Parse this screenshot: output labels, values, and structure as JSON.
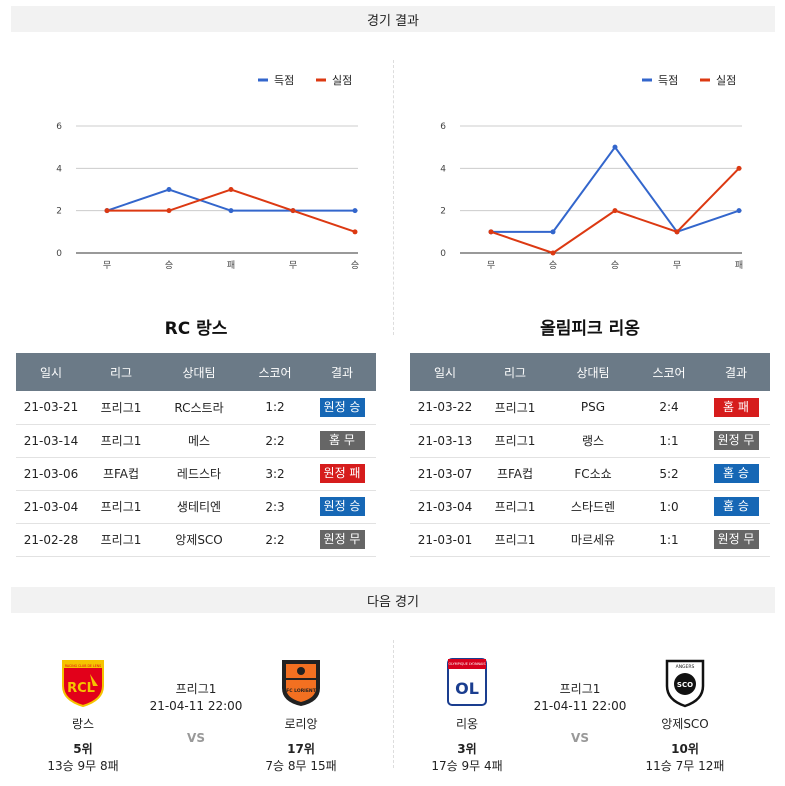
{
  "sections": {
    "results_title": "경기 결과",
    "next_title": "다음 경기"
  },
  "legend": {
    "scored": "득점",
    "conceded": "실점"
  },
  "colors": {
    "scored": "#3366cc",
    "conceded": "#dc3912",
    "win": "#1667b5",
    "draw": "#666666",
    "loss": "#d61c1c"
  },
  "chart_data": [
    {
      "type": "line",
      "categories": [
        "무",
        "승",
        "패",
        "무",
        "승"
      ],
      "series": [
        {
          "name": "득점",
          "values": [
            2,
            3,
            2,
            2,
            2
          ]
        },
        {
          "name": "실점",
          "values": [
            2,
            2,
            3,
            2,
            1
          ]
        }
      ],
      "yticks": [
        0,
        2,
        4,
        6
      ],
      "ylim": [
        0,
        6
      ],
      "legend_position": "top-right",
      "grid": true
    },
    {
      "type": "line",
      "categories": [
        "무",
        "승",
        "승",
        "무",
        "패"
      ],
      "series": [
        {
          "name": "득점",
          "values": [
            1,
            1,
            5,
            1,
            2
          ]
        },
        {
          "name": "실점",
          "values": [
            1,
            0,
            2,
            1,
            4
          ]
        }
      ],
      "yticks": [
        0,
        2,
        4,
        6
      ],
      "ylim": [
        0,
        6
      ],
      "legend_position": "top-right",
      "grid": true
    }
  ],
  "table_headers": [
    "일시",
    "리그",
    "상대팀",
    "스코어",
    "결과"
  ],
  "teams": [
    {
      "name": "RC 랑스",
      "rows": [
        {
          "date": "21-03-21",
          "league": "프리그1",
          "opponent": "RC스트라",
          "score": "1:2",
          "result": "원정 승",
          "kind": "win"
        },
        {
          "date": "21-03-14",
          "league": "프리그1",
          "opponent": "메스",
          "score": "2:2",
          "result": "홈 무",
          "kind": "draw"
        },
        {
          "date": "21-03-06",
          "league": "프FA컵",
          "opponent": "레드스타",
          "score": "3:2",
          "result": "원정 패",
          "kind": "loss"
        },
        {
          "date": "21-03-04",
          "league": "프리그1",
          "opponent": "생테티엔",
          "score": "2:3",
          "result": "원정 승",
          "kind": "win"
        },
        {
          "date": "21-02-28",
          "league": "프리그1",
          "opponent": "앙제SCO",
          "score": "2:2",
          "result": "원정 무",
          "kind": "draw"
        }
      ]
    },
    {
      "name": "올림피크 리옹",
      "rows": [
        {
          "date": "21-03-22",
          "league": "프리그1",
          "opponent": "PSG",
          "score": "2:4",
          "result": "홈 패",
          "kind": "loss"
        },
        {
          "date": "21-03-13",
          "league": "프리그1",
          "opponent": "랭스",
          "score": "1:1",
          "result": "원정 무",
          "kind": "draw"
        },
        {
          "date": "21-03-07",
          "league": "프FA컵",
          "opponent": "FC소쇼",
          "score": "5:2",
          "result": "홈 승",
          "kind": "win"
        },
        {
          "date": "21-03-04",
          "league": "프리그1",
          "opponent": "스타드렌",
          "score": "1:0",
          "result": "홈 승",
          "kind": "win"
        },
        {
          "date": "21-03-01",
          "league": "프리그1",
          "opponent": "마르세유",
          "score": "1:1",
          "result": "원정 무",
          "kind": "draw"
        }
      ]
    }
  ],
  "next_matches": [
    {
      "league": "프리그1",
      "datetime": "21-04-11 22:00",
      "vs": "VS",
      "home": {
        "name": "랑스",
        "rank": "5위",
        "record": "13승 9무 8패",
        "logo_text": "RCL",
        "logo_top": "RACING CLUB DE LENS"
      },
      "away": {
        "name": "로리앙",
        "rank": "17위",
        "record": "7승 8무 15패",
        "logo_text": "FC LORIENT"
      }
    },
    {
      "league": "프리그1",
      "datetime": "21-04-11 22:00",
      "vs": "VS",
      "home": {
        "name": "리옹",
        "rank": "3위",
        "record": "17승 9무 4패",
        "logo_text": "OL",
        "logo_top": "OLYMPIQUE LYONNAIS"
      },
      "away": {
        "name": "앙제SCO",
        "rank": "10위",
        "record": "11승 7무 12패",
        "logo_text": "SCO",
        "logo_top": "ANGERS"
      }
    }
  ]
}
